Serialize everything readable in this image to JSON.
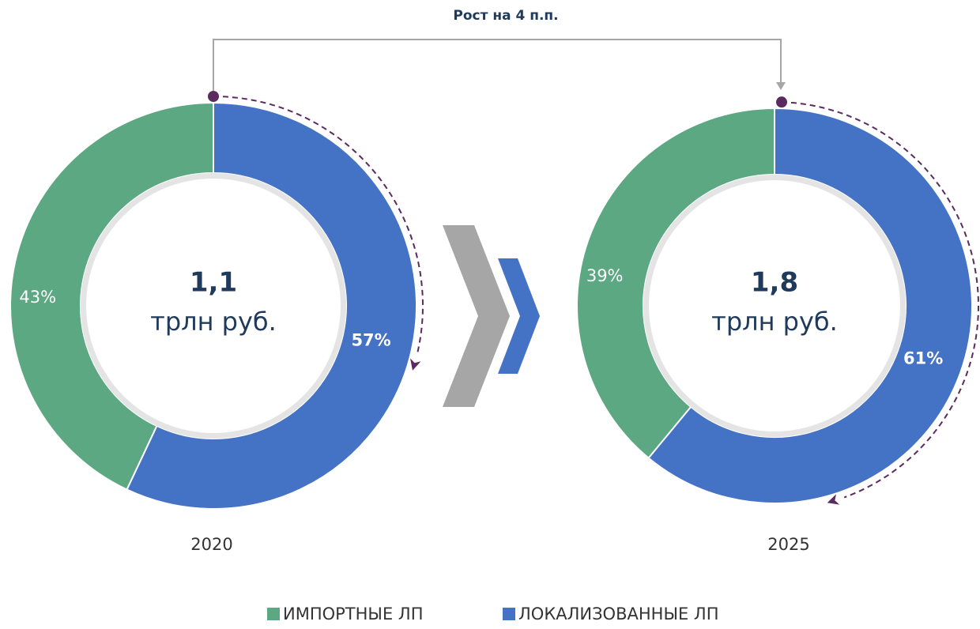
{
  "annotation": "Рост на 4 п.п.",
  "chart_data": [
    {
      "type": "donut",
      "label": "2020",
      "center_value": "1,1",
      "center_unit": "трлн руб.",
      "categories": [
        "ИМПОРТНЫЕ ЛП",
        "ЛОКАЛИЗОВАННЫЕ ЛП"
      ],
      "values": [
        43,
        57
      ],
      "value_labels": [
        "43%",
        "57%"
      ],
      "colors": [
        "#5ba882",
        "#4472c4"
      ]
    },
    {
      "type": "donut",
      "label": "2025",
      "center_value": "1,8",
      "center_unit": "трлн руб.",
      "categories": [
        "ИМПОРТНЫЕ ЛП",
        "ЛОКАЛИЗОВАННЫЕ ЛП"
      ],
      "values": [
        39,
        61
      ],
      "value_labels": [
        "39%",
        "61%"
      ],
      "colors": [
        "#5ba882",
        "#4472c4"
      ]
    }
  ]
}
